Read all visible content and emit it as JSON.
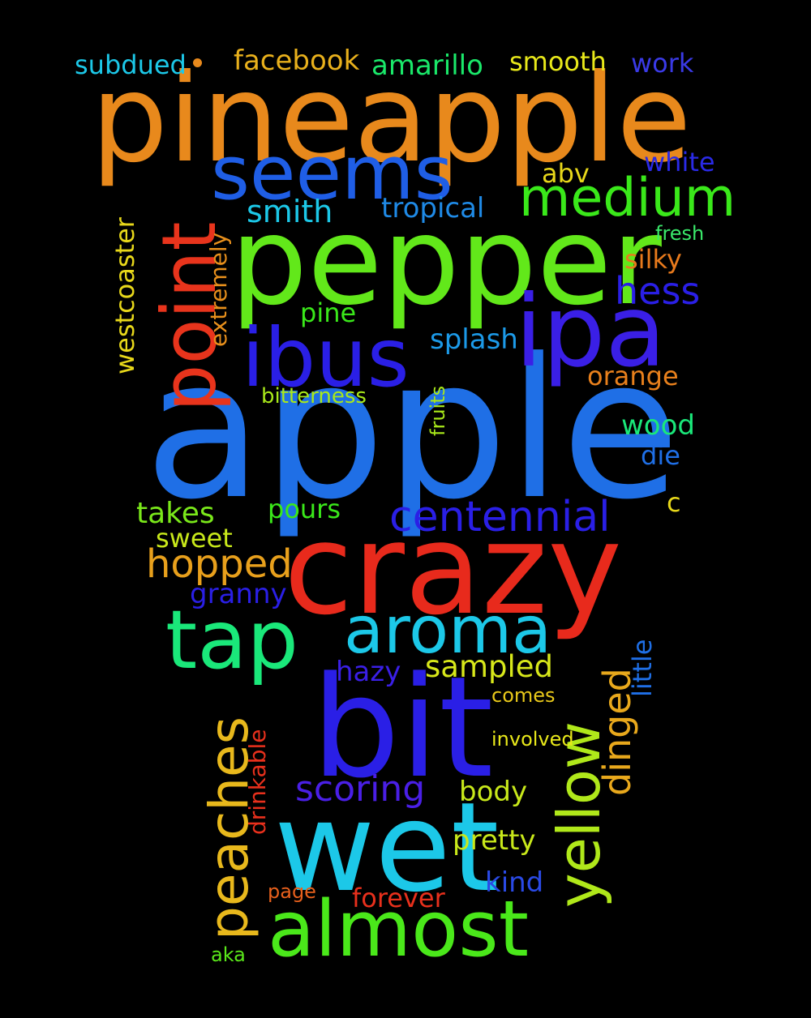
{
  "words": [
    {
      "text": "pineapple",
      "color": "#e8891c"
    },
    {
      "text": "apple",
      "color": "#1f6fe6"
    },
    {
      "text": "pepper",
      "color": "#62e81a"
    },
    {
      "text": "crazy",
      "color": "#e82a1c"
    },
    {
      "text": "bit",
      "color": "#2a1fe6"
    },
    {
      "text": "wet",
      "color": "#1cc8e8"
    },
    {
      "text": "seems",
      "color": "#1f5ee6"
    },
    {
      "text": "ipa",
      "color": "#3a1fe6"
    },
    {
      "text": "point",
      "color": "#e8341c"
    },
    {
      "text": "ibus",
      "color": "#2a1fe6"
    },
    {
      "text": "almost",
      "color": "#4ae81a"
    },
    {
      "text": "aroma",
      "color": "#1cc8e8"
    },
    {
      "text": "tap",
      "color": "#1ae87a"
    },
    {
      "text": "yellow",
      "color": "#b0e81a"
    },
    {
      "text": "peaches",
      "color": "#e8b81c"
    },
    {
      "text": "medium",
      "color": "#3ae81a"
    },
    {
      "text": "centennial",
      "color": "#2a1fe6"
    },
    {
      "text": "hopped",
      "color": "#e8a01c"
    },
    {
      "text": "dinged",
      "color": "#e8a81c"
    },
    {
      "text": "scoring",
      "color": "#4a1fe6"
    },
    {
      "text": "hess",
      "color": "#2a1fe6"
    },
    {
      "text": "sampled",
      "color": "#d8e81a"
    },
    {
      "text": "facebook",
      "color": "#e8b01c"
    },
    {
      "text": "amarillo",
      "color": "#1ae86a"
    },
    {
      "text": "subdued",
      "color": "#1cc8e8"
    },
    {
      "text": "smooth",
      "color": "#e8e81a"
    },
    {
      "text": "work",
      "color": "#3a3ae6"
    },
    {
      "text": "white",
      "color": "#2a2ae6"
    },
    {
      "text": "abv",
      "color": "#e8d81a"
    },
    {
      "text": "smith",
      "color": "#1cc8e8"
    },
    {
      "text": "tropical",
      "color": "#1f8ae6"
    },
    {
      "text": "fresh",
      "color": "#3ae86a"
    },
    {
      "text": "silky",
      "color": "#e87a1c"
    },
    {
      "text": "extremely",
      "color": "#e8901c"
    },
    {
      "text": "westcoaster",
      "color": "#e8d81a"
    },
    {
      "text": "pine",
      "color": "#3ae81a"
    },
    {
      "text": "splash",
      "color": "#1c9ae8"
    },
    {
      "text": "orange",
      "color": "#e8801c"
    },
    {
      "text": "bitterness",
      "color": "#a8e81a"
    },
    {
      "text": "fruits",
      "color": "#a8e81a"
    },
    {
      "text": "wood",
      "color": "#1ae87a"
    },
    {
      "text": "die",
      "color": "#1f6fe6"
    },
    {
      "text": "takes",
      "color": "#7ae81a"
    },
    {
      "text": "pours",
      "color": "#3ae81a"
    },
    {
      "text": "c",
      "color": "#e8d81a"
    },
    {
      "text": "sweet",
      "color": "#c8e81a"
    },
    {
      "text": "granny",
      "color": "#2a1fe6"
    },
    {
      "text": "little",
      "color": "#1f6fe6"
    },
    {
      "text": "hazy",
      "color": "#3a1fe6"
    },
    {
      "text": "comes",
      "color": "#e8c81a"
    },
    {
      "text": "drinkable",
      "color": "#e8301c"
    },
    {
      "text": "involved",
      "color": "#e8e81a"
    },
    {
      "text": "body",
      "color": "#c8e81a"
    },
    {
      "text": "pretty",
      "color": "#c8e81a"
    },
    {
      "text": "kind",
      "color": "#2a4ae6"
    },
    {
      "text": "page",
      "color": "#e8601c"
    },
    {
      "text": "forever",
      "color": "#e8301c"
    },
    {
      "text": "aka",
      "color": "#5ae81a"
    }
  ],
  "dot_color": "#e8891c"
}
